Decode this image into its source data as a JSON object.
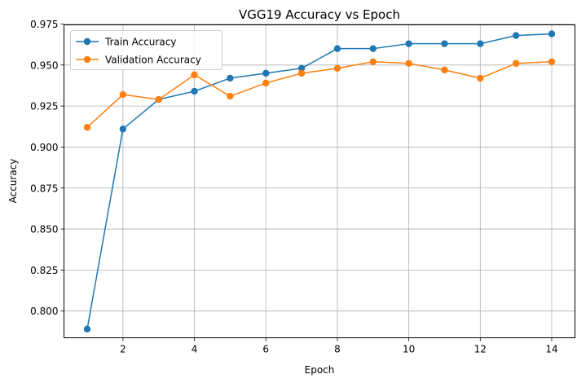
{
  "chart_data": {
    "type": "line",
    "title": "VGG19 Accuracy vs Epoch",
    "xlabel": "Epoch",
    "ylabel": "Accuracy",
    "x": [
      1,
      2,
      3,
      4,
      5,
      6,
      7,
      8,
      9,
      10,
      11,
      12,
      13,
      14
    ],
    "xlim": [
      0.35,
      14.65
    ],
    "ylim": [
      0.7837,
      0.9745
    ],
    "xticks": [
      2,
      4,
      6,
      8,
      10,
      12,
      14
    ],
    "yticks": [
      0.8,
      0.825,
      0.85,
      0.875,
      0.9,
      0.925,
      0.95,
      0.975
    ],
    "ytick_labels": [
      "0.800",
      "0.825",
      "0.850",
      "0.875",
      "0.900",
      "0.925",
      "0.950",
      "0.975"
    ],
    "grid": true,
    "legend_position": "top-left",
    "series": [
      {
        "name": "Train Accuracy",
        "color": "#1f77b4",
        "values": [
          0.789,
          0.911,
          0.929,
          0.934,
          0.942,
          0.945,
          0.948,
          0.96,
          0.96,
          0.963,
          0.963,
          0.963,
          0.968,
          0.969
        ]
      },
      {
        "name": "Validation Accuracy",
        "color": "#ff7f0e",
        "values": [
          0.912,
          0.932,
          0.929,
          0.944,
          0.931,
          0.939,
          0.945,
          0.948,
          0.952,
          0.951,
          0.947,
          0.942,
          0.951,
          0.952
        ]
      }
    ]
  }
}
